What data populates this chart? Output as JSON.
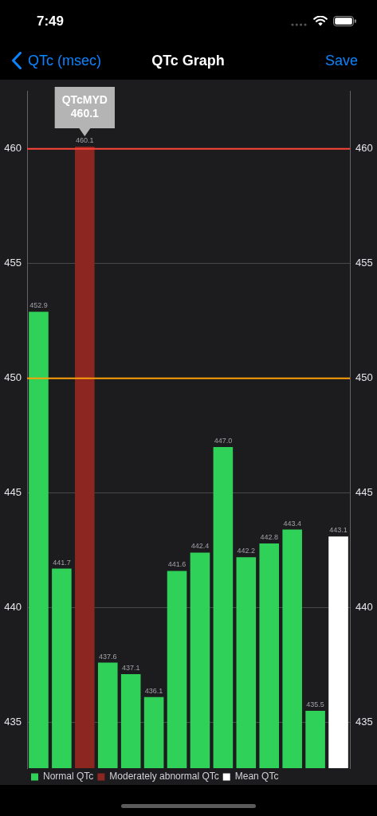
{
  "chart_data": {
    "type": "bar",
    "title": "QTc Graph",
    "annotations": [
      "7:49",
      "QTc (msec)",
      "Save",
      {
        "text": "QTcMYD\n460.1",
        "y": 460.1
      }
    ],
    "categories": [
      null,
      null,
      null,
      null,
      null,
      null,
      null,
      null,
      null,
      null,
      null,
      null,
      null,
      null
    ],
    "series": [
      {
        "name": "Normal QTc",
        "color": "#30d158",
        "values": [
          452.9,
          441.7,
          null,
          437.6,
          437.1,
          436.1,
          441.6,
          442.4,
          447.0,
          442.2,
          442.8,
          443.4,
          435.5,
          null
        ],
        "value_labels": [
          "452.9",
          "441.7",
          null,
          "437.6",
          "437.1",
          "436.1",
          "441.6",
          "442.4",
          "447.0",
          "442.2",
          "442.8",
          "443.4",
          "435.5",
          null
        ]
      },
      {
        "name": "Moderately abnormal QTc",
        "color": "#8b2620",
        "values": [
          null,
          null,
          460.1,
          null,
          null,
          null,
          null,
          null,
          null,
          null,
          null,
          null,
          null,
          null
        ],
        "value_labels": [
          null,
          null,
          "460.1",
          null,
          null,
          null,
          null,
          null,
          null,
          null,
          null,
          null,
          null,
          null
        ]
      },
      {
        "name": "Mean QTc",
        "color": "#ffffff",
        "values": [
          null,
          null,
          null,
          null,
          null,
          null,
          null,
          null,
          null,
          null,
          null,
          null,
          null,
          443.1
        ],
        "value_labels": [
          null,
          null,
          null,
          null,
          null,
          null,
          null,
          null,
          null,
          null,
          null,
          null,
          null,
          "443.1"
        ]
      }
    ],
    "ylim": [
      433,
      462.5
    ],
    "yticks": [
      435,
      440,
      445,
      450,
      455,
      460
    ],
    "y2lim": [
      433,
      462.5
    ],
    "y2ticks": [
      435,
      440,
      445,
      450,
      455,
      460
    ],
    "ref_lines": [
      {
        "axis": "y",
        "value": 460,
        "color": "#ff453a"
      },
      {
        "axis": "y",
        "value": 450,
        "color": "#ff9f0a"
      }
    ],
    "grid": "y",
    "legend": "bottom left"
  }
}
